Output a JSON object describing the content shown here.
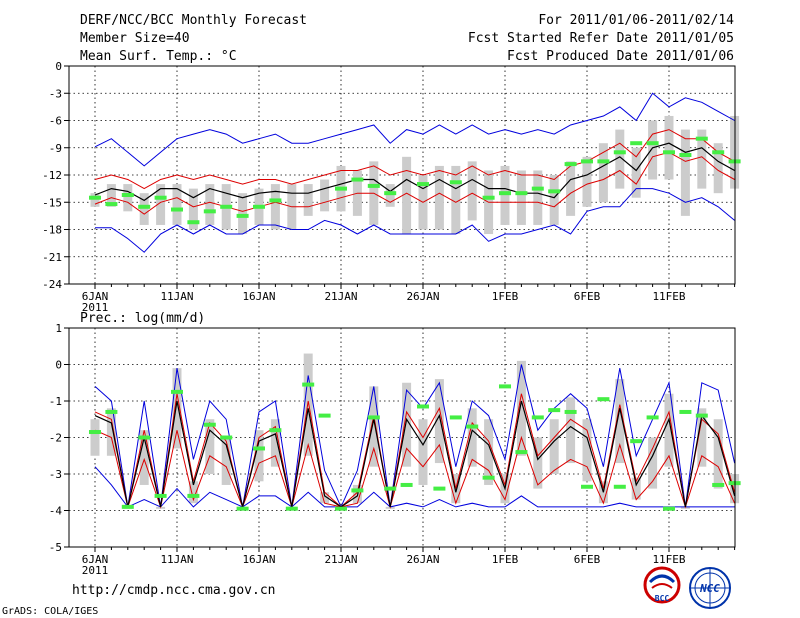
{
  "header": {
    "title": "DERF/NCC/BCC Monthly Forecast",
    "member_size": "Member Size=40",
    "variable": "Mean Surf. Temp.: °C",
    "period": "For 2011/01/06-2011/02/14",
    "started": "Fcst Started Refer Date 2011/01/05",
    "produced": "Fcst Produced Date 2011/01/06"
  },
  "footer": {
    "url": "http://cmdp.ncc.cma.gov.cn",
    "grads": "GrADS: COLA/IGES",
    "logo_bcc": "BCC",
    "logo_ncc": "NCC"
  },
  "colors": {
    "envelope": "#0000dd",
    "quartile": "#dd0000",
    "mean": "#000000",
    "box": "#cccccc",
    "obs": "#44ee44"
  },
  "chart_data": [
    {
      "type": "box",
      "name": "temperature",
      "title": "Mean Surf. Temp.: °C",
      "ylabel": "°C",
      "ylim": [
        -24,
        0
      ],
      "yticks": [
        0,
        -3,
        -6,
        -9,
        -12,
        -15,
        -18,
        -21,
        -24
      ],
      "ytick_labels": [
        "0",
        "-3",
        "-6",
        "-9",
        "-12",
        "-15",
        "-18",
        "-21",
        "-24"
      ],
      "x_days": [
        1,
        40
      ],
      "xticks": [
        1,
        6,
        11,
        16,
        21,
        26,
        31,
        36
      ],
      "xtick_labels": [
        "6JAN",
        "11JAN",
        "16JAN",
        "21JAN",
        "26JAN",
        "1FEB",
        "6FEB",
        "11FEB"
      ],
      "xtick_year": "2011",
      "grid": true,
      "series": [
        {
          "name": "max",
          "values": [
            -8.9,
            -8.0,
            -9.5,
            -11.0,
            -9.5,
            -8.0,
            -7.5,
            -7.0,
            -7.5,
            -8.5,
            -8.0,
            -7.5,
            -8.5,
            -8.5,
            -8.0,
            -7.5,
            -7.0,
            -6.5,
            -8.5,
            -7.0,
            -7.5,
            -6.5,
            -7.5,
            -6.5,
            -7.5,
            -7.0,
            -7.5,
            -7.0,
            -7.5,
            -6.5,
            -6.0,
            -5.5,
            -4.5,
            -6.0,
            -3.0,
            -4.5,
            -3.5,
            -4.0,
            -5.0,
            -6.0
          ]
        },
        {
          "name": "q75",
          "values": [
            -12.5,
            -12.0,
            -12.5,
            -13.5,
            -12.5,
            -12.0,
            -12.5,
            -12.0,
            -12.5,
            -13.0,
            -12.5,
            -12.5,
            -13.0,
            -12.5,
            -12.0,
            -11.5,
            -11.5,
            -11.0,
            -12.0,
            -11.5,
            -12.0,
            -11.5,
            -12.0,
            -11.0,
            -12.0,
            -11.5,
            -12.0,
            -12.0,
            -12.5,
            -11.0,
            -10.5,
            -9.5,
            -8.5,
            -10.0,
            -7.5,
            -7.0,
            -8.0,
            -8.0,
            -9.5,
            -10.5
          ]
        },
        {
          "name": "mean",
          "values": [
            -14.2,
            -13.5,
            -13.8,
            -14.8,
            -13.5,
            -13.5,
            -14.5,
            -13.5,
            -14.0,
            -14.5,
            -14.0,
            -13.8,
            -14.0,
            -14.0,
            -13.5,
            -13.0,
            -12.5,
            -12.5,
            -13.8,
            -12.5,
            -13.5,
            -12.5,
            -13.5,
            -12.5,
            -13.5,
            -13.5,
            -14.0,
            -14.0,
            -14.5,
            -12.5,
            -12.0,
            -11.0,
            -10.0,
            -11.5,
            -9.0,
            -8.5,
            -9.5,
            -9.0,
            -10.5,
            -11.5
          ]
        },
        {
          "name": "q25",
          "values": [
            -15.2,
            -14.5,
            -15.0,
            -16.3,
            -15.0,
            -14.5,
            -15.5,
            -15.0,
            -15.5,
            -16.0,
            -15.5,
            -15.0,
            -15.5,
            -15.5,
            -15.0,
            -14.5,
            -14.0,
            -14.0,
            -15.0,
            -14.0,
            -15.0,
            -14.0,
            -15.0,
            -14.0,
            -15.0,
            -15.0,
            -15.0,
            -15.0,
            -15.5,
            -14.0,
            -13.0,
            -12.5,
            -11.5,
            -13.0,
            -10.0,
            -9.5,
            -10.5,
            -10.0,
            -11.5,
            -12.5
          ]
        },
        {
          "name": "min",
          "values": [
            -17.8,
            -17.8,
            -19.0,
            -20.5,
            -18.5,
            -17.5,
            -18.5,
            -17.5,
            -18.5,
            -18.5,
            -17.5,
            -17.5,
            -18.0,
            -18.0,
            -17.0,
            -17.5,
            -18.5,
            -17.5,
            -18.5,
            -18.5,
            -18.5,
            -18.5,
            -18.5,
            -17.5,
            -19.3,
            -18.5,
            -18.5,
            -18.0,
            -17.5,
            -18.5,
            -16.0,
            -15.5,
            -15.5,
            -13.5,
            -13.5,
            -14.0,
            -15.0,
            -14.5,
            -15.5,
            -17.0
          ]
        },
        {
          "name": "box_top",
          "values": [
            -14.0,
            -13.0,
            -13.0,
            -14.0,
            -13.0,
            -13.0,
            -13.5,
            -13.0,
            -13.0,
            -14.0,
            -13.5,
            -13.0,
            -13.0,
            -13.0,
            -12.5,
            -11.0,
            -11.5,
            -10.5,
            -13.0,
            -10.0,
            -12.0,
            -11.0,
            -11.0,
            -10.5,
            -11.5,
            -11.0,
            -11.5,
            -11.5,
            -12.0,
            -10.5,
            -10.0,
            -8.5,
            -7.0,
            -9.0,
            -6.0,
            -5.5,
            -7.0,
            -7.0,
            -8.5,
            -5.5
          ]
        },
        {
          "name": "box_bottom",
          "values": [
            -15.5,
            -15.5,
            -16.0,
            -17.5,
            -17.5,
            -17.5,
            -18.0,
            -17.5,
            -18.0,
            -18.5,
            -17.5,
            -18.0,
            -18.0,
            -16.5,
            -16.0,
            -16.0,
            -16.5,
            -17.5,
            -15.5,
            -18.5,
            -18.0,
            -18.0,
            -18.5,
            -17.0,
            -18.5,
            -17.5,
            -17.5,
            -17.5,
            -17.5,
            -16.5,
            -15.5,
            -15.0,
            -13.5,
            -14.5,
            -12.5,
            -12.5,
            -16.5,
            -13.5,
            -14.0,
            -13.5
          ]
        },
        {
          "name": "observed",
          "values": [
            -14.5,
            -15.2,
            -14.2,
            -15.5,
            -14.5,
            -15.8,
            -17.2,
            -16.0,
            -15.5,
            -16.5,
            -15.5,
            -14.8,
            null,
            null,
            null,
            -13.5,
            -12.5,
            -13.2,
            -14.0,
            null,
            -13.0,
            null,
            -12.8,
            null,
            -14.5,
            -14.0,
            -14.0,
            -13.5,
            -13.8,
            -10.8,
            -10.5,
            -10.5,
            -9.5,
            -8.5,
            -8.5,
            -9.5,
            -9.8,
            -8.0,
            -9.5,
            -10.5
          ]
        }
      ]
    },
    {
      "type": "box",
      "name": "precipitation",
      "title": "Prec.: log(mm/d)",
      "ylabel": "log(mm/d)",
      "ylim": [
        -5,
        1
      ],
      "yticks": [
        1,
        0,
        -1,
        -2,
        -3,
        -4,
        -5
      ],
      "ytick_labels": [
        "1",
        "0",
        "-1",
        "-2",
        "-3",
        "-4",
        "-5"
      ],
      "x_days": [
        1,
        40
      ],
      "xticks": [
        1,
        6,
        11,
        16,
        21,
        26,
        31,
        36
      ],
      "xtick_labels": [
        "6JAN",
        "11JAN",
        "16JAN",
        "21JAN",
        "26JAN",
        "1FEB",
        "6FEB",
        "11FEB"
      ],
      "xtick_year": "2011",
      "grid": true,
      "series": [
        {
          "name": "max",
          "values": [
            -0.6,
            -1.0,
            -3.9,
            -1.0,
            -3.9,
            -0.1,
            -2.6,
            -1.0,
            -1.5,
            -3.9,
            -1.3,
            -1.0,
            -3.9,
            -0.3,
            -2.9,
            -3.9,
            -2.9,
            -0.6,
            -3.9,
            -0.7,
            -1.2,
            -0.5,
            -2.8,
            -1.0,
            -1.4,
            -2.6,
            0.0,
            -1.8,
            -1.2,
            -0.8,
            -1.2,
            -2.8,
            -0.1,
            -2.5,
            -1.5,
            -0.5,
            -3.9,
            -0.5,
            -0.7,
            -2.7
          ]
        },
        {
          "name": "q75",
          "values": [
            -1.3,
            -1.5,
            -3.9,
            -1.8,
            -3.9,
            -0.8,
            -3.2,
            -1.6,
            -2.1,
            -3.9,
            -2.0,
            -1.7,
            -3.9,
            -1.0,
            -3.5,
            -3.9,
            -3.5,
            -1.4,
            -3.9,
            -1.3,
            -2.0,
            -1.2,
            -3.4,
            -1.6,
            -2.1,
            -3.3,
            -0.8,
            -2.5,
            -2.0,
            -1.5,
            -1.8,
            -3.4,
            -1.1,
            -3.2,
            -2.3,
            -1.3,
            -3.9,
            -1.5,
            -1.9,
            -3.5
          ]
        },
        {
          "name": "mean",
          "values": [
            -1.4,
            -1.6,
            -3.9,
            -2.0,
            -3.9,
            -1.0,
            -3.3,
            -1.8,
            -2.2,
            -3.9,
            -2.1,
            -1.9,
            -3.9,
            -1.2,
            -3.6,
            -3.9,
            -3.6,
            -1.5,
            -3.9,
            -1.5,
            -2.2,
            -1.4,
            -3.5,
            -1.8,
            -2.2,
            -3.4,
            -1.0,
            -2.6,
            -2.1,
            -1.7,
            -2.0,
            -3.5,
            -1.2,
            -3.3,
            -2.5,
            -1.5,
            -3.9,
            -1.4,
            -2.0,
            -3.6
          ]
        },
        {
          "name": "q25",
          "values": [
            -1.8,
            -2.0,
            -3.9,
            -2.6,
            -3.9,
            -1.8,
            -3.7,
            -2.5,
            -2.8,
            -3.9,
            -2.7,
            -2.5,
            -3.9,
            -2.2,
            -3.8,
            -3.9,
            -3.8,
            -2.3,
            -3.9,
            -2.3,
            -2.8,
            -2.2,
            -3.8,
            -2.6,
            -2.9,
            -3.7,
            -2.0,
            -3.3,
            -2.9,
            -2.6,
            -2.8,
            -3.8,
            -2.2,
            -3.7,
            -3.2,
            -2.5,
            -3.9,
            -2.5,
            -2.8,
            -3.8
          ]
        },
        {
          "name": "min",
          "values": [
            -2.8,
            -3.3,
            -3.9,
            -3.7,
            -3.9,
            -3.4,
            -3.9,
            -3.5,
            -3.7,
            -3.9,
            -3.6,
            -3.6,
            -3.9,
            -3.5,
            -3.9,
            -3.9,
            -3.9,
            -3.5,
            -3.9,
            -3.8,
            -3.9,
            -3.7,
            -3.9,
            -3.8,
            -3.9,
            -3.9,
            -3.6,
            -3.9,
            -3.9,
            -3.9,
            -3.9,
            -3.9,
            -3.8,
            -3.9,
            -3.9,
            -3.9,
            -3.9,
            -3.9,
            -3.9,
            -3.9
          ]
        },
        {
          "name": "box_top",
          "values": [
            -1.5,
            -1.2,
            -3.9,
            -1.8,
            -3.9,
            -0.1,
            -3.2,
            -1.5,
            -2.0,
            -3.9,
            -1.8,
            -1.5,
            -3.9,
            0.3,
            -3.5,
            -3.9,
            -3.3,
            -0.6,
            -3.9,
            -0.5,
            -1.5,
            -0.4,
            -3.0,
            -1.2,
            -1.5,
            -3.0,
            0.1,
            -2.0,
            -1.5,
            -0.9,
            -1.5,
            -3.2,
            -0.4,
            -3.1,
            -2.0,
            -0.8,
            -3.9,
            -1.2,
            -1.5,
            -3.0
          ]
        },
        {
          "name": "box_bottom",
          "values": [
            -2.5,
            -2.5,
            -3.9,
            -3.3,
            -3.9,
            -2.3,
            -3.8,
            -3.0,
            -3.3,
            -3.9,
            -3.2,
            -2.8,
            -3.9,
            -2.5,
            -3.8,
            -3.9,
            -3.8,
            -2.8,
            -3.9,
            -2.8,
            -3.3,
            -2.7,
            -3.8,
            -2.8,
            -3.3,
            -3.8,
            -2.5,
            -3.4,
            -3.0,
            -2.7,
            -3.2,
            -3.8,
            -2.7,
            -3.7,
            -3.4,
            -2.8,
            -3.9,
            -2.8,
            -3.4,
            -3.8
          ]
        },
        {
          "name": "observed",
          "values": [
            -1.85,
            -1.3,
            -3.9,
            -2.0,
            -3.6,
            -0.75,
            -3.6,
            -1.65,
            -2.0,
            -3.95,
            -2.3,
            -1.8,
            -3.95,
            -0.55,
            -1.4,
            -3.95,
            -3.45,
            -1.45,
            -3.4,
            -3.3,
            -1.15,
            -3.4,
            -1.45,
            -1.7,
            -3.1,
            -0.6,
            -2.4,
            -1.45,
            -1.25,
            -1.3,
            -3.35,
            -0.95,
            -3.35,
            -2.1,
            -1.45,
            -3.95,
            -1.3,
            -1.4,
            -3.3,
            -3.25
          ]
        }
      ]
    }
  ]
}
